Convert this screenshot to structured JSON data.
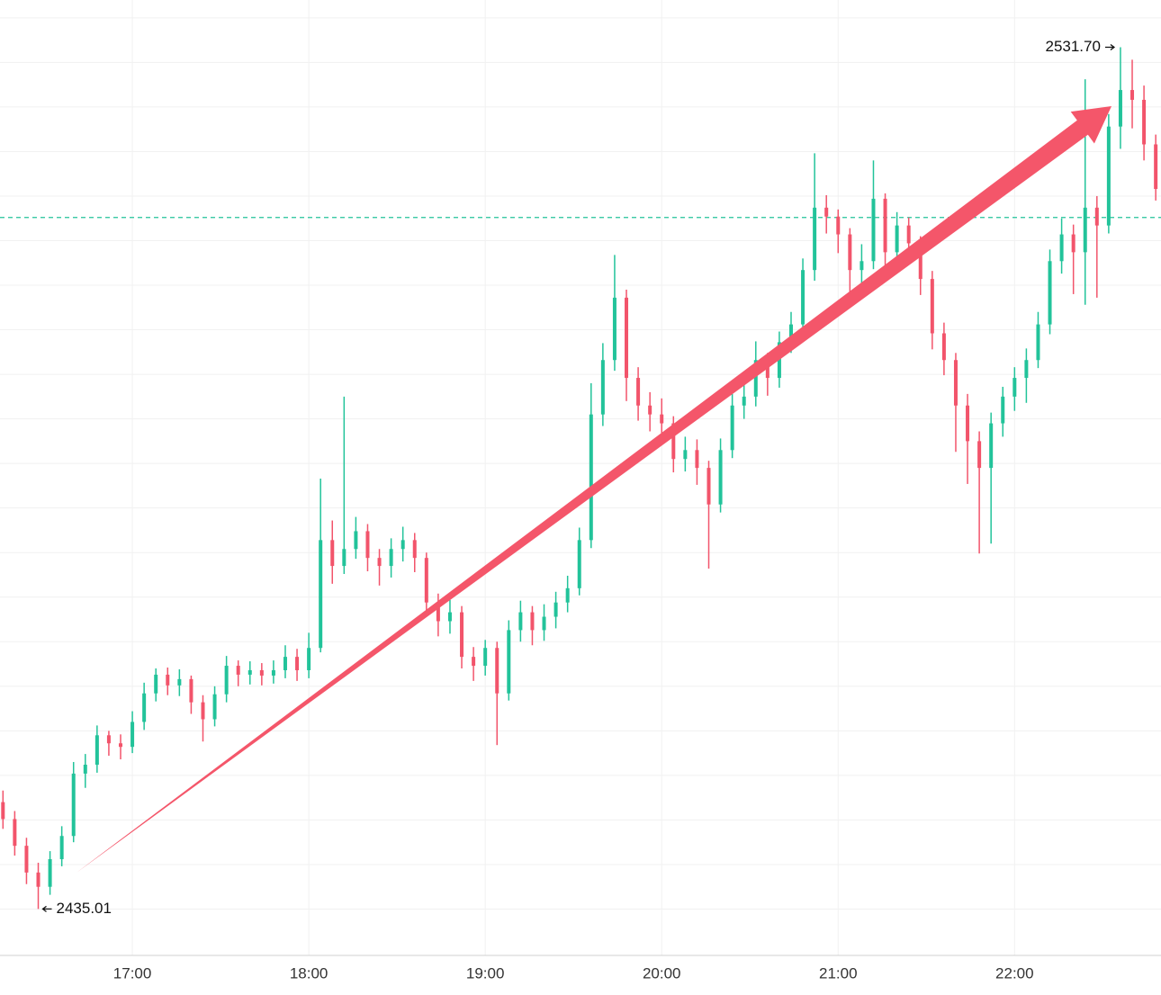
{
  "chart_data": {
    "type": "candlestick",
    "categories": [
      null,
      null,
      null,
      null,
      null,
      null,
      null,
      null,
      null,
      null,
      null,
      "17:00",
      null,
      null,
      null,
      null,
      null,
      null,
      null,
      null,
      null,
      null,
      null,
      null,
      null,
      null,
      "18:00",
      null,
      null,
      null,
      null,
      null,
      null,
      null,
      null,
      null,
      null,
      null,
      null,
      null,
      null,
      "19:00",
      null,
      null,
      null,
      null,
      null,
      null,
      null,
      null,
      null,
      null,
      null,
      null,
      null,
      null,
      "20:00",
      null,
      null,
      null,
      null,
      null,
      null,
      null,
      null,
      null,
      null,
      null,
      null,
      null,
      null,
      "21:00",
      null,
      null,
      null,
      null,
      null,
      null,
      null,
      null,
      null,
      null,
      null,
      null,
      null,
      null,
      "22:00",
      null,
      null,
      null,
      null,
      null,
      null,
      null,
      null,
      null,
      null,
      null,
      null
    ],
    "open": [
      2447.0,
      2445.1,
      2442.1,
      2439.1,
      2437.5,
      2440.6,
      2443.2,
      2450.2,
      2451.2,
      2454.5,
      2453.6,
      2453.2,
      2456.0,
      2459.2,
      2461.3,
      2460.1,
      2460.8,
      2458.2,
      2456.3,
      2459.1,
      2462.3,
      2461.3,
      2461.8,
      2461.2,
      2461.8,
      2463.3,
      2461.8,
      2464.3,
      2476.4,
      2473.5,
      2475.4,
      2477.4,
      2474.4,
      2473.5,
      2475.4,
      2476.4,
      2474.4,
      2469.4,
      2467.3,
      2468.3,
      2463.3,
      2462.3,
      2464.3,
      2459.2,
      2466.3,
      2468.3,
      2466.3,
      2467.8,
      2469.4,
      2471.0,
      2476.4,
      2490.5,
      2496.6,
      2503.6,
      2494.6,
      2491.5,
      2490.5,
      2489.5,
      2485.5,
      2486.5,
      2484.5,
      2480.4,
      2486.5,
      2491.5,
      2492.5,
      2496.6,
      2494.6,
      2498.6,
      2500.6,
      2506.7,
      2513.7,
      2512.7,
      2510.7,
      2506.7,
      2507.7,
      2514.7,
      2508.7,
      2511.7,
      2509.7,
      2505.7,
      2499.6,
      2496.6,
      2491.5,
      2487.5,
      2484.5,
      2489.5,
      2492.5,
      2494.6,
      2496.6,
      2500.6,
      2507.7,
      2510.7,
      2508.7,
      2513.7,
      2511.7,
      2522.8,
      2526.9,
      2525.8,
      2520.8
    ],
    "high": [
      2448.3,
      2446.0,
      2443.0,
      2440.2,
      2441.5,
      2444.3,
      2451.5,
      2452.4,
      2455.6,
      2455.0,
      2454.6,
      2457.2,
      2460.4,
      2462.0,
      2462.1,
      2461.9,
      2461.2,
      2459.0,
      2460.0,
      2463.4,
      2462.9,
      2462.8,
      2462.6,
      2462.9,
      2464.6,
      2464.2,
      2466.0,
      2483.3,
      2478.6,
      2492.5,
      2479.0,
      2478.2,
      2475.4,
      2476.6,
      2477.9,
      2477.2,
      2475.0,
      2470.4,
      2469.7,
      2469.0,
      2464.4,
      2465.2,
      2465.0,
      2467.4,
      2469.6,
      2469.0,
      2469.2,
      2470.6,
      2472.4,
      2477.8,
      2494.0,
      2498.5,
      2508.4,
      2504.5,
      2495.8,
      2493.0,
      2492.3,
      2490.3,
      2488.0,
      2487.7,
      2485.3,
      2487.8,
      2492.8,
      2494.0,
      2498.7,
      2497.4,
      2499.8,
      2502.0,
      2508.0,
      2519.8,
      2515.1,
      2513.5,
      2511.4,
      2509.6,
      2519.0,
      2515.3,
      2513.2,
      2512.6,
      2510.5,
      2506.6,
      2500.8,
      2497.4,
      2492.8,
      2488.6,
      2490.7,
      2493.6,
      2495.8,
      2497.9,
      2502.0,
      2509.0,
      2512.5,
      2511.8,
      2528.1,
      2515.0,
      2524.2,
      2531.7,
      2530.3,
      2527.4,
      2521.9
    ],
    "low": [
      2444.0,
      2441.0,
      2437.8,
      2435.01,
      2436.6,
      2439.8,
      2442.5,
      2448.6,
      2450.3,
      2452.2,
      2451.8,
      2452.5,
      2455.1,
      2458.3,
      2459.0,
      2458.9,
      2456.9,
      2453.8,
      2455.5,
      2458.2,
      2460.0,
      2460.2,
      2460.1,
      2460.3,
      2460.9,
      2460.6,
      2460.9,
      2463.8,
      2471.5,
      2472.6,
      2474.3,
      2472.9,
      2471.3,
      2472.2,
      2474.0,
      2472.8,
      2468.0,
      2465.6,
      2465.9,
      2462.0,
      2460.6,
      2461.2,
      2453.4,
      2458.4,
      2465.0,
      2464.6,
      2465.1,
      2466.5,
      2468.3,
      2470.2,
      2475.5,
      2489.2,
      2495.4,
      2492.0,
      2489.8,
      2488.6,
      2487.8,
      2484.0,
      2484.1,
      2482.6,
      2473.2,
      2479.5,
      2485.6,
      2490.0,
      2491.4,
      2492.6,
      2493.5,
      2497.4,
      2499.7,
      2505.5,
      2510.8,
      2508.6,
      2504.2,
      2505.0,
      2506.8,
      2507.0,
      2507.4,
      2508.1,
      2503.9,
      2497.8,
      2494.9,
      2486.3,
      2482.7,
      2474.9,
      2476.0,
      2488.0,
      2490.9,
      2491.8,
      2495.7,
      2499.5,
      2506.3,
      2504.0,
      2502.8,
      2503.6,
      2510.8,
      2520.3,
      2522.6,
      2519.0,
      2514.5
    ],
    "close": [
      2445.1,
      2442.1,
      2439.1,
      2437.5,
      2440.6,
      2443.2,
      2450.2,
      2451.2,
      2454.5,
      2453.6,
      2453.2,
      2456.0,
      2459.2,
      2461.3,
      2460.1,
      2460.8,
      2458.2,
      2456.3,
      2459.1,
      2462.3,
      2461.3,
      2461.8,
      2461.2,
      2461.8,
      2463.3,
      2461.8,
      2464.3,
      2476.4,
      2473.5,
      2475.4,
      2477.4,
      2474.4,
      2473.5,
      2475.4,
      2476.4,
      2474.4,
      2469.4,
      2467.3,
      2468.3,
      2463.3,
      2462.3,
      2464.3,
      2459.2,
      2466.3,
      2468.3,
      2466.3,
      2467.8,
      2469.4,
      2471.0,
      2476.4,
      2490.5,
      2496.6,
      2503.6,
      2494.6,
      2491.5,
      2490.5,
      2489.5,
      2485.5,
      2486.5,
      2484.5,
      2480.4,
      2486.5,
      2491.5,
      2492.5,
      2496.6,
      2494.6,
      2498.6,
      2500.6,
      2506.7,
      2513.7,
      2512.7,
      2510.7,
      2506.7,
      2507.7,
      2514.7,
      2508.7,
      2511.7,
      2509.7,
      2505.7,
      2499.6,
      2496.6,
      2491.5,
      2487.5,
      2484.5,
      2489.5,
      2492.5,
      2494.6,
      2496.6,
      2500.6,
      2507.7,
      2510.7,
      2508.7,
      2513.7,
      2511.7,
      2522.8,
      2526.9,
      2525.8,
      2520.8,
      2515.8
    ],
    "up_color": "#22c39a",
    "down_color": "#f2546b",
    "ylim": [
      2429.8,
      2537.0
    ],
    "yticks": [
      2435,
      2440,
      2445,
      2450,
      2455,
      2460,
      2465,
      2470,
      2475,
      2480,
      2485,
      2490,
      2495,
      2500,
      2505,
      2510,
      2515,
      2520,
      2525,
      2530,
      2535
    ],
    "grid": true,
    "price_line": {
      "value": 2512.6,
      "color": "#22c39a"
    },
    "annotations": {
      "max": {
        "value": 2531.7,
        "label": "2531.70"
      },
      "min": {
        "value": 2435.01,
        "label": "2435.01"
      }
    }
  }
}
